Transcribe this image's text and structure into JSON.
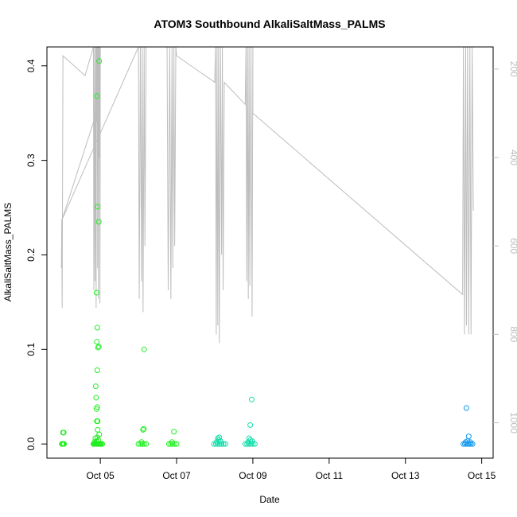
{
  "chart_data": {
    "type": "scatter",
    "title": "ATOM3 Southbound AlkaliSaltMass_PALMS",
    "xlabel": "Date",
    "ylabel": "AlkaliSaltMass_PALMS",
    "x_axis": {
      "unit": "day of October",
      "range": [
        3.6,
        15.3
      ],
      "ticks": [
        5,
        7,
        9,
        11,
        13,
        15
      ],
      "tick_labels": [
        "Oct 05",
        "Oct 07",
        "Oct 09",
        "Oct 11",
        "Oct 13",
        "Oct 15"
      ]
    },
    "y_axis": {
      "range": [
        -0.015,
        0.42
      ],
      "ticks": [
        0.0,
        0.1,
        0.2,
        0.3,
        0.4
      ],
      "tick_labels": [
        "0.0",
        "0.1",
        "0.2",
        "0.3",
        "0.4"
      ]
    },
    "y2_axis": {
      "reversed": true,
      "range": [
        1080,
        150
      ],
      "ticks": [
        200,
        400,
        600,
        800,
        1000
      ],
      "tick_labels": [
        "200",
        "400",
        "600",
        "800",
        "1000"
      ],
      "color": "#bdbdbd"
    },
    "colors": {
      "green": "#22ee22",
      "teal": "#11ddaa",
      "blue": "#1199ee",
      "line": "#bdbdbd"
    },
    "series": [
      {
        "color_key": "green",
        "points": [
          [
            3.99,
            0.0
          ],
          [
            4.01,
            0.0
          ],
          [
            4.03,
            0.0
          ],
          [
            4.05,
            0.0
          ],
          [
            4.02,
            0.012
          ],
          [
            4.04,
            0.012
          ],
          [
            4.82,
            0.0
          ],
          [
            4.84,
            0.0
          ],
          [
            4.86,
            0.0
          ],
          [
            4.88,
            0.0
          ],
          [
            4.9,
            0.0
          ],
          [
            4.92,
            0.0
          ],
          [
            4.94,
            0.0
          ],
          [
            4.96,
            0.0
          ],
          [
            4.98,
            0.0
          ],
          [
            5.0,
            0.0
          ],
          [
            5.02,
            0.0
          ],
          [
            5.05,
            0.0
          ],
          [
            4.85,
            0.002
          ],
          [
            4.9,
            0.003
          ],
          [
            4.95,
            0.004
          ],
          [
            4.87,
            0.006
          ],
          [
            4.92,
            0.007
          ],
          [
            4.97,
            0.01
          ],
          [
            4.93,
            0.015
          ],
          [
            4.91,
            0.024
          ],
          [
            4.93,
            0.024
          ],
          [
            4.9,
            0.037
          ],
          [
            4.92,
            0.039
          ],
          [
            4.89,
            0.049
          ],
          [
            4.88,
            0.061
          ],
          [
            4.92,
            0.078
          ],
          [
            4.94,
            0.102
          ],
          [
            4.96,
            0.103
          ],
          [
            4.91,
            0.108
          ],
          [
            4.92,
            0.123
          ],
          [
            4.9,
            0.16
          ],
          [
            4.96,
            0.235
          ],
          [
            4.93,
            0.251
          ],
          [
            4.91,
            0.368
          ],
          [
            4.97,
            0.405
          ],
          [
            6.0,
            0.0
          ],
          [
            6.05,
            0.0
          ],
          [
            6.1,
            0.0
          ],
          [
            6.15,
            0.0
          ],
          [
            6.2,
            0.0
          ],
          [
            6.08,
            0.002
          ],
          [
            6.12,
            0.015
          ],
          [
            6.14,
            0.016
          ],
          [
            6.15,
            0.1
          ],
          [
            6.8,
            0.0
          ],
          [
            6.85,
            0.0
          ],
          [
            6.9,
            0.0
          ],
          [
            6.95,
            0.0
          ],
          [
            7.0,
            0.0
          ],
          [
            6.88,
            0.002
          ],
          [
            6.93,
            0.013
          ]
        ]
      },
      {
        "color_key": "teal",
        "points": [
          [
            7.98,
            0.0
          ],
          [
            8.03,
            0.0
          ],
          [
            8.08,
            0.0
          ],
          [
            8.13,
            0.0
          ],
          [
            8.18,
            0.0
          ],
          [
            8.23,
            0.0
          ],
          [
            8.28,
            0.0
          ],
          [
            8.05,
            0.002
          ],
          [
            8.1,
            0.004
          ],
          [
            8.15,
            0.003
          ],
          [
            8.08,
            0.006
          ],
          [
            8.12,
            0.007
          ],
          [
            8.8,
            0.0
          ],
          [
            8.85,
            0.0
          ],
          [
            8.9,
            0.0
          ],
          [
            8.95,
            0.0
          ],
          [
            9.0,
            0.0
          ],
          [
            9.05,
            0.0
          ],
          [
            8.88,
            0.002
          ],
          [
            8.93,
            0.004
          ],
          [
            8.98,
            0.003
          ],
          [
            8.9,
            0.006
          ],
          [
            8.93,
            0.02
          ],
          [
            8.97,
            0.047
          ]
        ]
      },
      {
        "color_key": "blue",
        "points": [
          [
            14.52,
            0.0
          ],
          [
            14.56,
            0.0
          ],
          [
            14.6,
            0.0
          ],
          [
            14.64,
            0.0
          ],
          [
            14.68,
            0.0
          ],
          [
            14.72,
            0.0
          ],
          [
            14.76,
            0.0
          ],
          [
            14.58,
            0.002
          ],
          [
            14.63,
            0.003
          ],
          [
            14.7,
            0.002
          ],
          [
            14.66,
            0.008
          ],
          [
            14.6,
            0.038
          ]
        ]
      }
    ],
    "altitude_line": {
      "axis": "y2",
      "points": [
        [
          3.98,
          650
        ],
        [
          3.99,
          540
        ],
        [
          4.0,
          740
        ],
        [
          4.02,
          170
        ],
        [
          4.6,
          215
        ],
        [
          4.82,
          150
        ],
        [
          4.83,
          700
        ],
        [
          4.85,
          150
        ],
        [
          4.86,
          680
        ],
        [
          4.88,
          150
        ],
        [
          4.89,
          740
        ],
        [
          4.9,
          150
        ],
        [
          4.91,
          320
        ],
        [
          4.92,
          150
        ],
        [
          4.93,
          650
        ],
        [
          4.94,
          150
        ],
        [
          4.95,
          720
        ],
        [
          4.96,
          150
        ],
        [
          4.97,
          400
        ],
        [
          4.98,
          150
        ],
        [
          4.99,
          730
        ],
        [
          5.0,
          150
        ],
        [
          4.97,
          280
        ],
        [
          4.0,
          540
        ],
        [
          6.0,
          150
        ],
        [
          6.02,
          720
        ],
        [
          6.05,
          150
        ],
        [
          6.08,
          680
        ],
        [
          6.1,
          150
        ],
        [
          6.12,
          750
        ],
        [
          6.15,
          150
        ],
        [
          6.17,
          600
        ],
        [
          6.2,
          150
        ],
        [
          6.75,
          150
        ],
        [
          6.78,
          700
        ],
        [
          6.82,
          150
        ],
        [
          6.85,
          720
        ],
        [
          6.88,
          150
        ],
        [
          6.9,
          650
        ],
        [
          6.93,
          150
        ],
        [
          6.95,
          600
        ],
        [
          6.98,
          150
        ],
        [
          7.0,
          170
        ],
        [
          8.0,
          230
        ],
        [
          8.02,
          150
        ],
        [
          8.04,
          800
        ],
        [
          8.06,
          150
        ],
        [
          8.08,
          780
        ],
        [
          8.1,
          150
        ],
        [
          8.12,
          820
        ],
        [
          8.15,
          150
        ],
        [
          8.18,
          620
        ],
        [
          8.2,
          150
        ],
        [
          8.22,
          700
        ],
        [
          8.25,
          230
        ],
        [
          8.8,
          280
        ],
        [
          8.82,
          150
        ],
        [
          8.84,
          680
        ],
        [
          8.86,
          150
        ],
        [
          8.88,
          720
        ],
        [
          8.9,
          150
        ],
        [
          8.92,
          690
        ],
        [
          8.95,
          150
        ],
        [
          8.98,
          760
        ],
        [
          9.0,
          150
        ],
        [
          9.0,
          300
        ],
        [
          14.5,
          710
        ],
        [
          14.52,
          150
        ],
        [
          14.55,
          800
        ],
        [
          14.58,
          150
        ],
        [
          14.6,
          780
        ],
        [
          14.63,
          150
        ],
        [
          14.66,
          800
        ],
        [
          14.69,
          150
        ],
        [
          14.72,
          800
        ],
        [
          14.75,
          150
        ],
        [
          14.78,
          520
        ]
      ]
    }
  }
}
